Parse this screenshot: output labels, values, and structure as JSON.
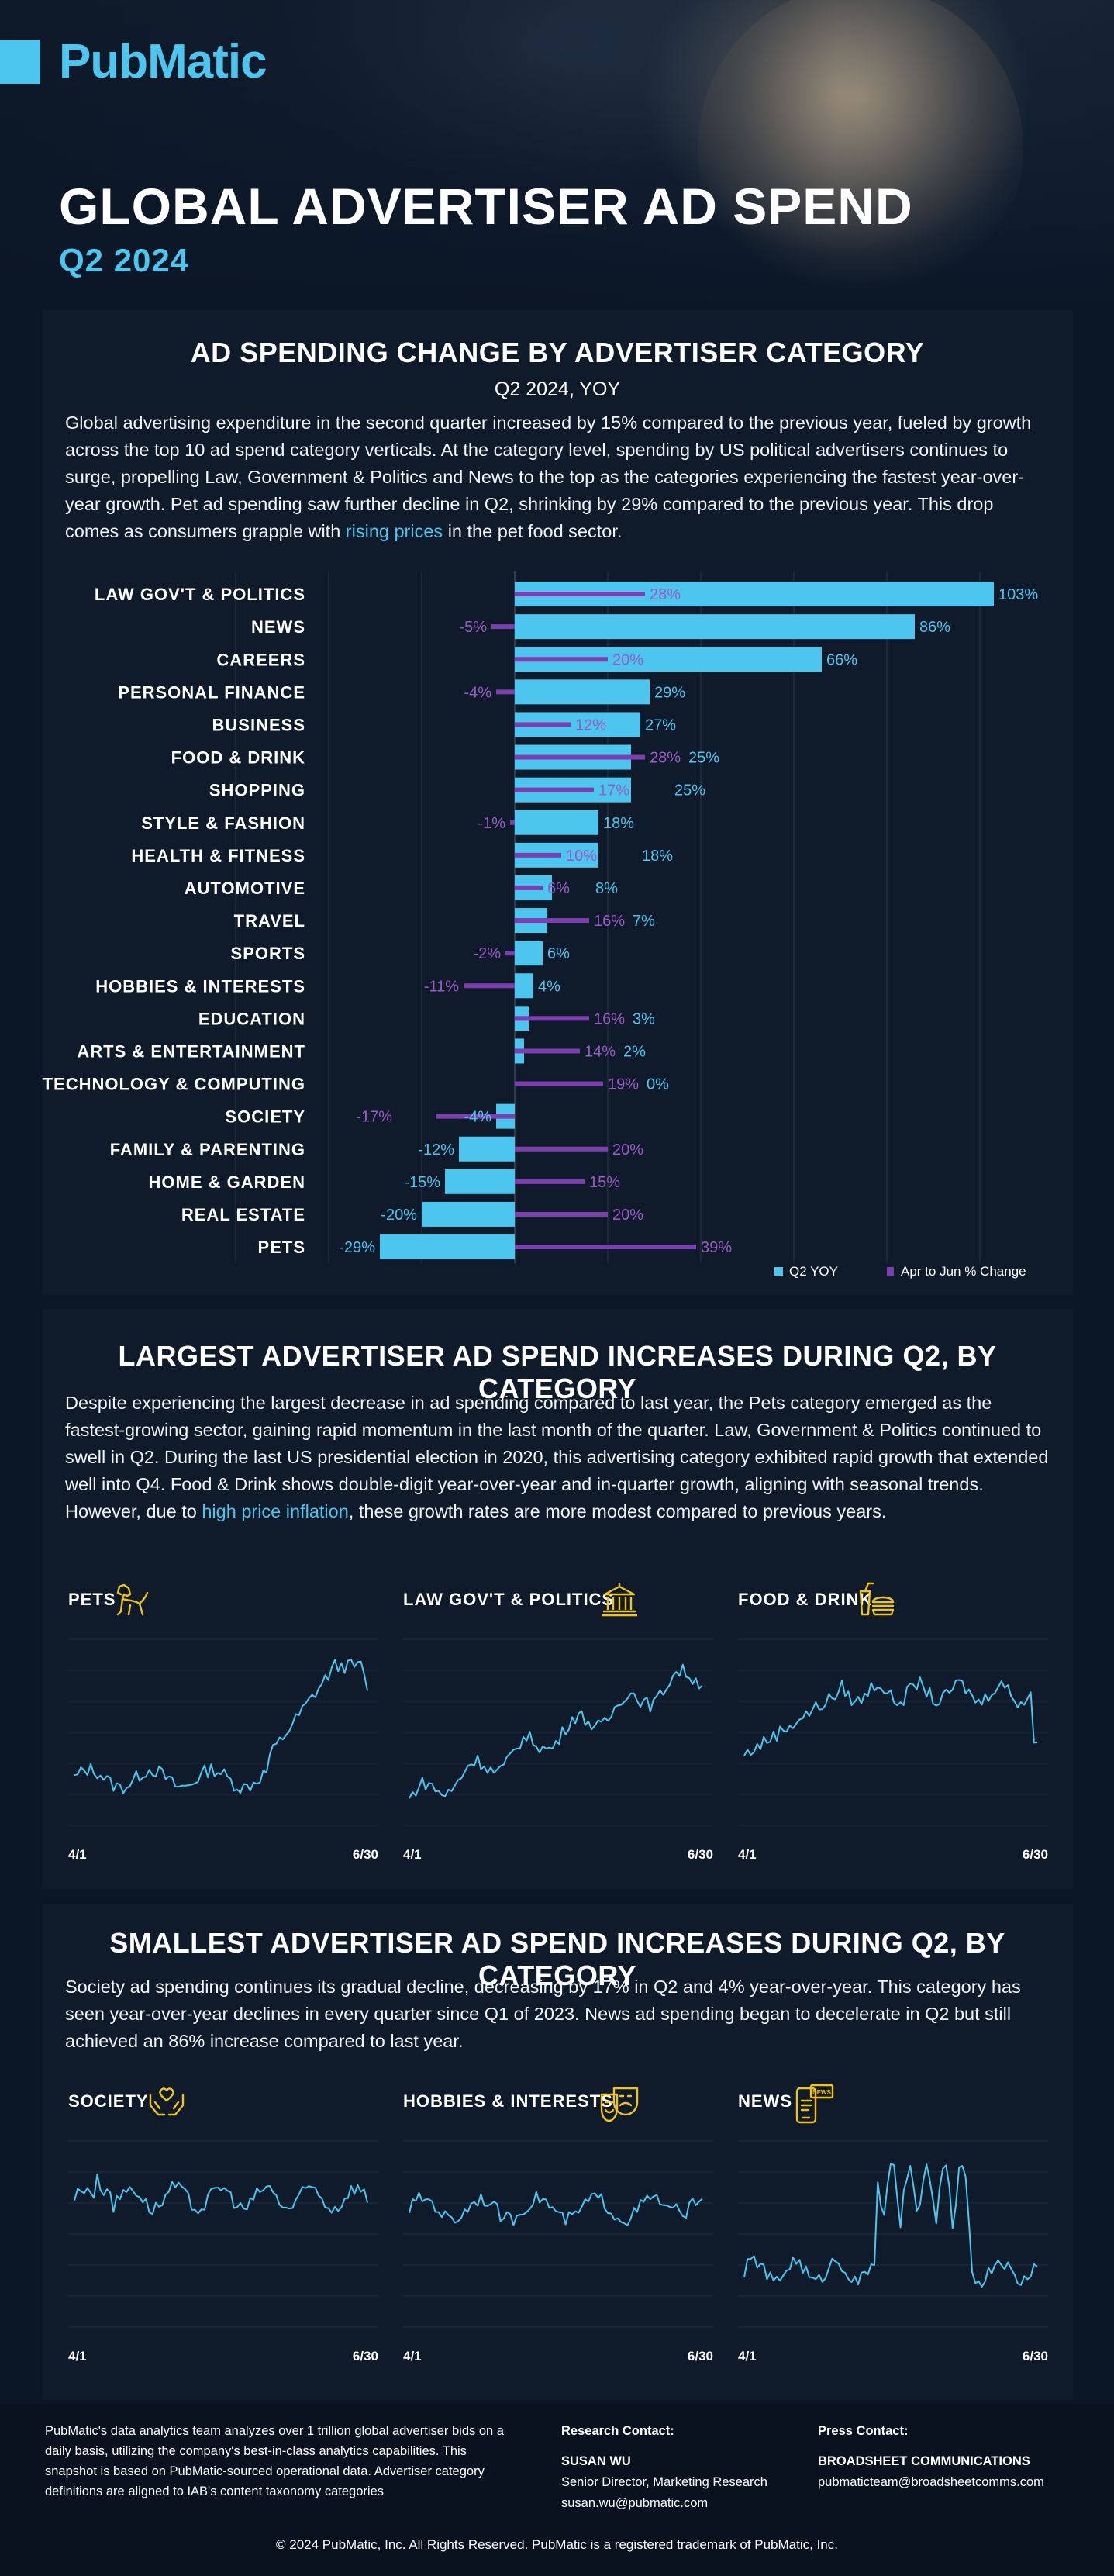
{
  "brand": {
    "logo": "PubMatic",
    "accent": "#4cc6ef",
    "purple": "#7d3fb0"
  },
  "hero": {
    "title": "GLOBAL ADVERTISER AD SPEND",
    "subtitle": "Q2 2024"
  },
  "section1": {
    "title": "AD SPENDING CHANGE BY ADVERTISER CATEGORY",
    "subtitle": "Q2 2024, YOY",
    "text_before": "Global advertising expenditure in the second quarter increased by 15% compared to the previous year, fueled by growth across the top 10 ad spend category verticals. At the category level, spending by US political advertisers continues to surge, propelling Law, Government & Politics and News to the top as the categories experiencing the fastest year-over-year growth. Pet ad spending saw further decline in Q2, shrinking by 29% compared to the previous year. This drop comes as consumers grapple with ",
    "link": "rising prices",
    "text_after": " in the pet food sector."
  },
  "chart_data": {
    "type": "bar",
    "orientation": "horizontal",
    "categories": [
      "LAW GOV'T & POLITICS",
      "NEWS",
      "CAREERS",
      "PERSONAL FINANCE",
      "BUSINESS",
      "FOOD & DRINK",
      "SHOPPING",
      "STYLE & FASHION",
      "HEALTH & FITNESS",
      "AUTOMOTIVE",
      "TRAVEL",
      "SPORTS",
      "HOBBIES & INTERESTS",
      "EDUCATION",
      "ARTS & ENTERTAINMENT",
      "TECHNOLOGY & COMPUTING",
      "SOCIETY",
      "FAMILY & PARENTING",
      "HOME & GARDEN",
      "REAL ESTATE",
      "PETS"
    ],
    "series": [
      {
        "name": "Q2 YOY",
        "color": "#4cc6ef",
        "values": [
          103,
          86,
          66,
          29,
          27,
          25,
          25,
          18,
          18,
          8,
          7,
          6,
          4,
          3,
          2,
          0,
          -4,
          -12,
          -15,
          -20,
          -29
        ]
      },
      {
        "name": "Apr to Jun % Change",
        "color": "#7d3fb0",
        "values": [
          28,
          -5,
          20,
          -4,
          12,
          28,
          17,
          -1,
          10,
          6,
          16,
          -2,
          -11,
          16,
          14,
          19,
          -17,
          20,
          15,
          20,
          39
        ]
      }
    ],
    "xlim": [
      -40,
      110
    ],
    "legend": "bottom-right",
    "grid": true
  },
  "section2": {
    "title": "LARGEST ADVERTISER AD SPEND INCREASES DURING Q2, BY CATEGORY",
    "text_before": "Despite experiencing the largest decrease in ad spending compared to last year, the Pets category emerged as the fastest-growing sector, gaining rapid momentum in the last month of the quarter. Law, Government & Politics continued to swell in Q2. During the last US presidential election in 2020, this advertising category exhibited rapid growth that extended well into Q4. Food & Drink shows double-digit year-over-year and in-quarter growth, aligning with seasonal trends. However, due to ",
    "link": "high price inflation",
    "text_after": ", these growth rates are more modest compared to previous years.",
    "charts": [
      {
        "title": "PETS",
        "icon": "dog-icon",
        "x_start": "4/1",
        "x_end": "6/30"
      },
      {
        "title": "LAW GOV'T & POLITICS",
        "icon": "government-building-icon",
        "x_start": "4/1",
        "x_end": "6/30"
      },
      {
        "title": "FOOD & DRINK",
        "icon": "burger-drink-icon",
        "x_start": "4/1",
        "x_end": "6/30"
      }
    ]
  },
  "section3": {
    "title": "SMALLEST ADVERTISER AD SPEND INCREASES DURING Q2, BY CATEGORY",
    "text": "Society ad spending continues its gradual decline, decreasing by 17% in Q2 and 4% year-over-year. This category has seen year-over-year declines in every quarter since Q1 of 2023. News ad spending began to decelerate in Q2 but still achieved an 86% increase compared to last year.",
    "charts": [
      {
        "title": "SOCIETY",
        "icon": "hands-heart-icon",
        "x_start": "4/1",
        "x_end": "6/30"
      },
      {
        "title": "HOBBIES & INTERESTS",
        "icon": "theater-masks-icon",
        "x_start": "4/1",
        "x_end": "6/30"
      },
      {
        "title": "NEWS",
        "icon": "phone-news-icon",
        "x_start": "4/1",
        "x_end": "6/30"
      }
    ]
  },
  "footer": {
    "note": "PubMatic's data analytics team analyzes over 1 trillion global advertiser bids on a daily basis, utilizing the company's best-in-class analytics capabilities. This snapshot is based on PubMatic-sourced operational data. Advertiser category definitions are aligned to IAB's content taxonomy categories",
    "research": {
      "heading": "Research Contact:",
      "name": "SUSAN WU",
      "role": "Senior Director, Marketing Research",
      "email": "susan.wu@pubmatic.com"
    },
    "press": {
      "heading": "Press Contact:",
      "name": "BROADSHEET COMMUNICATIONS",
      "email": "pubmaticteam@broadsheetcomms.com"
    },
    "copyright": "© 2024 PubMatic, Inc. All Rights Reserved. PubMatic is a registered trademark of PubMatic, Inc."
  }
}
